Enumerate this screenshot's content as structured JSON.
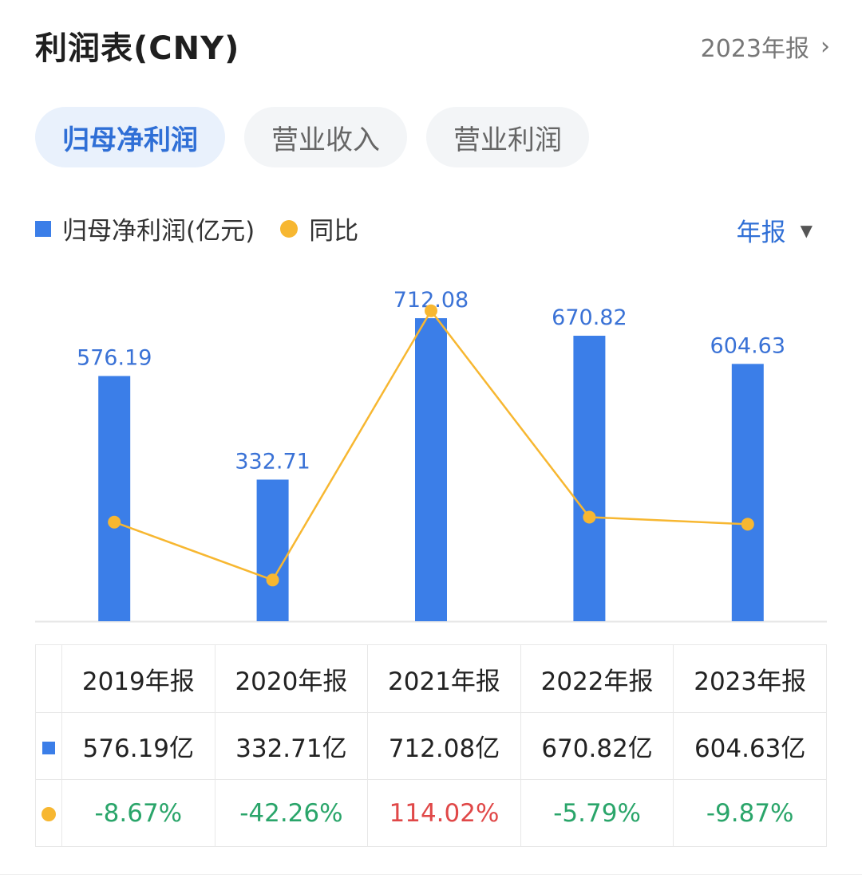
{
  "header": {
    "title": "利润表(CNY)",
    "report_link": "2023年报"
  },
  "tabs": [
    {
      "label": "归母净利润",
      "active": true
    },
    {
      "label": "营业收入",
      "active": false
    },
    {
      "label": "营业利润",
      "active": false
    }
  ],
  "legend": {
    "bar_label": "归母净利润(亿元)",
    "line_label": "同比"
  },
  "period_selector": "年报",
  "colors": {
    "bar": "#3b7ee8",
    "line": "#f7b731",
    "accent": "#2f6fd6",
    "negative": "#2aa56a",
    "positive": "#e04848"
  },
  "chart_data": {
    "type": "bar",
    "categories": [
      "2019年报",
      "2020年报",
      "2021年报",
      "2022年报",
      "2023年报"
    ],
    "series": [
      {
        "name": "归母净利润(亿元)",
        "type": "bar",
        "values": [
          576.19,
          332.71,
          712.08,
          670.82,
          604.63
        ],
        "labels": [
          "576.19",
          "332.71",
          "712.08",
          "670.82",
          "604.63"
        ]
      },
      {
        "name": "同比",
        "type": "line",
        "values": [
          -8.67,
          -42.26,
          114.02,
          -5.79,
          -9.87
        ]
      }
    ],
    "legend_position": "top-left",
    "grid": false
  },
  "table": {
    "headers": [
      "2019年报",
      "2020年报",
      "2021年报",
      "2022年报",
      "2023年报"
    ],
    "values": [
      "576.19亿",
      "332.71亿",
      "712.08亿",
      "670.82亿",
      "604.63亿"
    ],
    "yoy": [
      "-8.67%",
      "-42.26%",
      "114.02%",
      "-5.79%",
      "-9.87%"
    ]
  }
}
